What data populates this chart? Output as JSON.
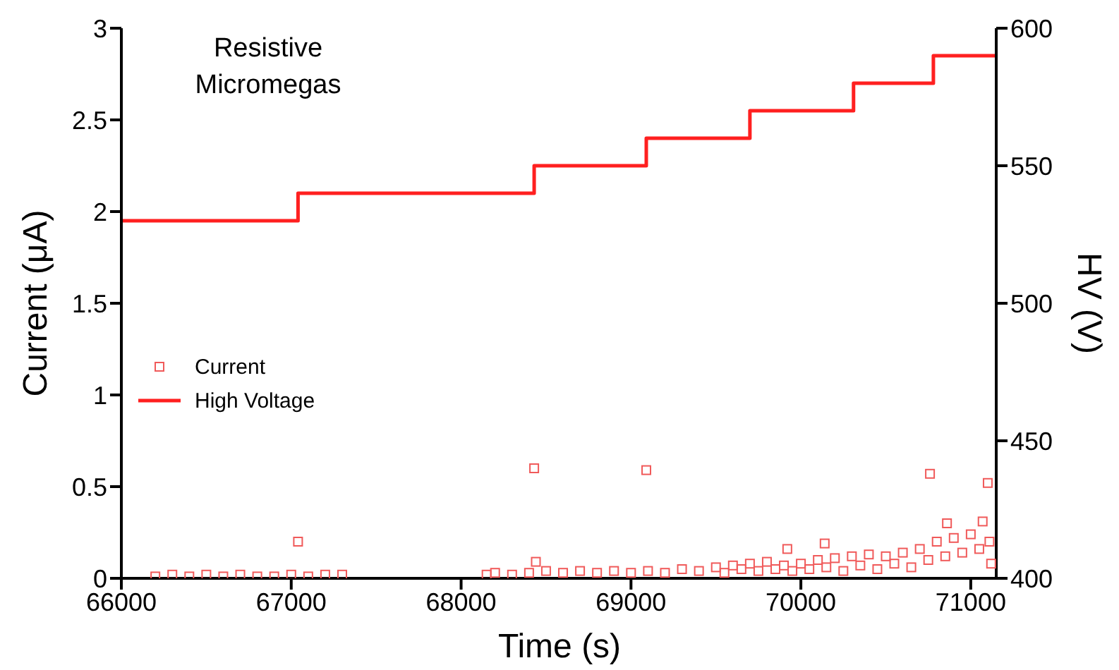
{
  "chart_data": {
    "type": "scatter",
    "xlabel": "Time (s)",
    "ylabel": "Current (μA)",
    "y2label": "HV (V)",
    "xlim": [
      66000,
      71150
    ],
    "xticks": [
      66000,
      67000,
      68000,
      69000,
      70000,
      71000
    ],
    "ylim": [
      0,
      3
    ],
    "yticks": [
      0,
      0.5,
      1,
      1.5,
      2,
      2.5,
      3
    ],
    "y2lim": [
      400,
      600
    ],
    "y2ticks": [
      400,
      450,
      500,
      550,
      600
    ],
    "grid": false,
    "legend": "left",
    "annotations": [
      "Resistive Micromegas"
    ],
    "series": [
      {
        "name": "Current",
        "color": "#f05a5a",
        "marker": "square",
        "x": [
          66200,
          66300,
          66400,
          66500,
          66600,
          66700,
          66800,
          66900,
          67000,
          67040,
          67100,
          67200,
          67300,
          68150,
          68200,
          68300,
          68400,
          68430,
          68440,
          68500,
          68600,
          68700,
          68800,
          68900,
          69000,
          69090,
          69100,
          69200,
          69300,
          69400,
          69500,
          69550,
          69600,
          69650,
          69700,
          69750,
          69800,
          69850,
          69900,
          69920,
          69950,
          70000,
          70050,
          70100,
          70140,
          70150,
          70200,
          70250,
          70300,
          70350,
          70400,
          70450,
          70500,
          70550,
          70600,
          70650,
          70700,
          70750,
          70760,
          70800,
          70850,
          70860,
          70900,
          70950,
          71000,
          71050,
          71070,
          71100,
          71110,
          71120
        ],
        "values": [
          0.01,
          0.02,
          0.01,
          0.02,
          0.01,
          0.02,
          0.01,
          0.01,
          0.02,
          0.2,
          0.01,
          0.02,
          0.02,
          0.02,
          0.03,
          0.02,
          0.03,
          0.6,
          0.09,
          0.04,
          0.03,
          0.04,
          0.03,
          0.04,
          0.03,
          0.59,
          0.04,
          0.03,
          0.05,
          0.04,
          0.06,
          0.03,
          0.07,
          0.05,
          0.08,
          0.04,
          0.09,
          0.05,
          0.07,
          0.16,
          0.04,
          0.08,
          0.05,
          0.1,
          0.19,
          0.06,
          0.11,
          0.04,
          0.12,
          0.07,
          0.13,
          0.05,
          0.12,
          0.08,
          0.14,
          0.06,
          0.16,
          0.1,
          0.57,
          0.2,
          0.12,
          0.3,
          0.22,
          0.14,
          0.24,
          0.16,
          0.31,
          0.52,
          0.2,
          0.08
        ]
      },
      {
        "name": "High Voltage",
        "type": "step",
        "axis": "y2",
        "color": "#ff2020",
        "line_style": "solid",
        "x": [
          66000,
          67040,
          68430,
          69090,
          69700,
          70310,
          70780,
          71150
        ],
        "values": [
          530,
          540,
          550,
          560,
          570,
          580,
          590,
          590
        ]
      }
    ]
  }
}
